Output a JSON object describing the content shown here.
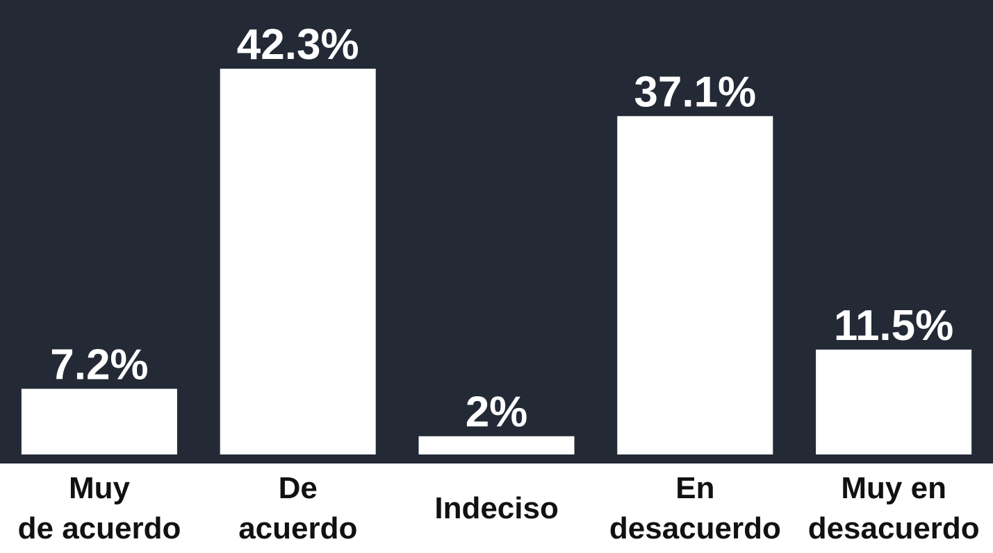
{
  "chart_data": {
    "type": "bar",
    "categories": [
      "Muy\nde acuerdo",
      "De\nacuerdo",
      "Indeciso",
      "En\ndesacuerdo",
      "Muy en\ndesacuerdo"
    ],
    "values": [
      7.2,
      42.3,
      2,
      37.1,
      11.5
    ],
    "value_labels": [
      "7.2%",
      "42.3%",
      "2%",
      "37.1%",
      "11.5%"
    ],
    "color": "#ffffff",
    "background": "#232a36"
  }
}
